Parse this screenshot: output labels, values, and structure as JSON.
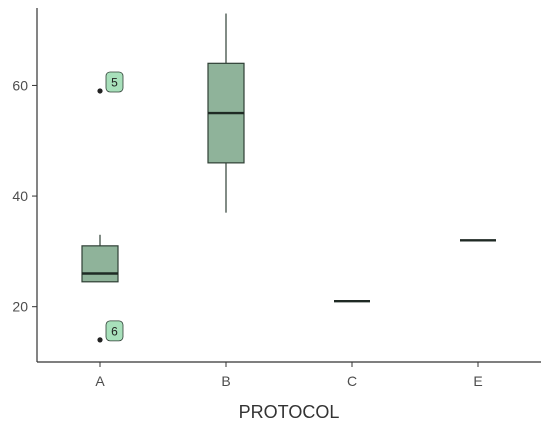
{
  "chart_data": {
    "type": "boxplot",
    "xlabel": "PROTOCOL",
    "ylabel": "",
    "categories": [
      "A",
      "B",
      "C",
      "E"
    ],
    "ylim": [
      10,
      74
    ],
    "yticks": [
      20,
      40,
      60
    ],
    "boxes": [
      {
        "category": "A",
        "whisker_low": 24.5,
        "q1": 24.5,
        "median": 26,
        "q3": 31,
        "whisker_high": 33
      },
      {
        "category": "B",
        "whisker_low": 37,
        "q1": 46,
        "median": 55,
        "q3": 64,
        "whisker_high": 73
      },
      {
        "category": "C",
        "whisker_low": 21,
        "q1": 21,
        "median": 21,
        "q3": 21,
        "whisker_high": 21
      },
      {
        "category": "E",
        "whisker_low": 32,
        "q1": 32,
        "median": 32,
        "q3": 32,
        "whisker_high": 32
      }
    ],
    "outliers": [
      {
        "category": "A",
        "value": 59,
        "label": "5"
      },
      {
        "category": "A",
        "value": 14,
        "label": "6"
      }
    ],
    "colors": {
      "box_fill": "#8fb39a",
      "box_stroke": "#2f3f35",
      "label_fill": "#a8e0bb"
    },
    "grid": false,
    "legend": "none"
  }
}
